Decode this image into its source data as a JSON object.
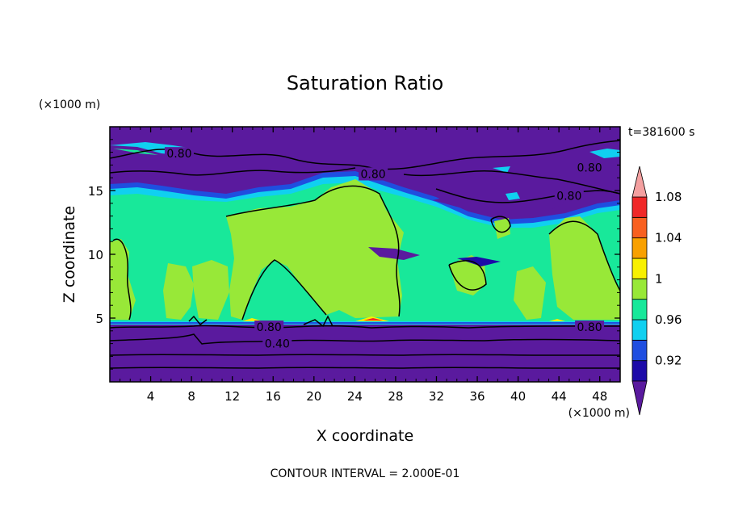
{
  "chart_data": {
    "type": "heatmap",
    "title": "Saturation Ratio",
    "xlabel": "X coordinate",
    "ylabel": "Z coordinate",
    "x_unit": "(×1000 m)",
    "z_unit": "(×1000 m)",
    "time_label": "t=381600 s",
    "footer": "CONTOUR INTERVAL = 2.000E-01",
    "xlim": [
      0,
      50
    ],
    "ylim": [
      0,
      20
    ],
    "x_ticks": [
      4,
      8,
      12,
      16,
      20,
      24,
      28,
      32,
      36,
      40,
      44,
      48
    ],
    "z_ticks": [
      5,
      10,
      15
    ],
    "colorbar": {
      "levels": [
        0.92,
        0.94,
        0.96,
        0.98,
        1.0,
        1.02,
        1.04,
        1.06,
        1.08
      ],
      "labels": [
        "0.92",
        "0.96",
        "1",
        "1.04",
        "1.08"
      ],
      "colors": [
        "#5a1a9e",
        "#1c0aa8",
        "#1f4ee0",
        "#10d0f0",
        "#18e89a",
        "#98e838",
        "#f8f000",
        "#f8a000",
        "#f86020",
        "#f02828",
        "#f4a0a0"
      ]
    },
    "contour_labels": [
      {
        "text": "0.80",
        "x": 6.8,
        "z": 17.9
      },
      {
        "text": "0.80",
        "x": 25.8,
        "z": 16.3
      },
      {
        "text": "0.80",
        "x": 47.0,
        "z": 16.8
      },
      {
        "text": "0.80",
        "x": 45.0,
        "z": 14.6
      },
      {
        "text": "0.80",
        "x": 15.6,
        "z": 4.3
      },
      {
        "text": "0.80",
        "x": 47.0,
        "z": 4.3
      },
      {
        "text": "0.40",
        "x": 16.4,
        "z": 3.0
      }
    ]
  }
}
